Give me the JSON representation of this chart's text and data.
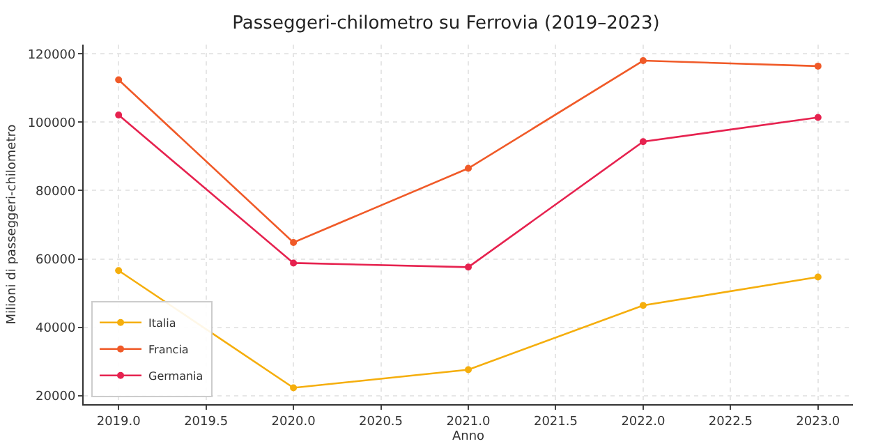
{
  "chart_data": {
    "type": "line",
    "title": "Passeggeri-chilometro su Ferrovia (2019–2023)",
    "xlabel": "Anno",
    "ylabel": "Milioni di passeggeri-chilometro",
    "x": [
      2019,
      2020,
      2021,
      2022,
      2023
    ],
    "series": [
      {
        "name": "Italia",
        "color": "#f5ae0c",
        "values": [
          56600,
          22300,
          27600,
          46400,
          54700
        ]
      },
      {
        "name": "Francia",
        "color": "#f05a28",
        "values": [
          112400,
          64800,
          86500,
          118000,
          116400
        ]
      },
      {
        "name": "Germania",
        "color": "#e6224f",
        "values": [
          102100,
          58800,
          57600,
          94300,
          101400
        ]
      }
    ],
    "xlim": [
      2018.8,
      2023.2
    ],
    "xticks": [
      {
        "value": 2019,
        "label": "2019.0"
      },
      {
        "value": 2019.5,
        "label": "2019.5"
      },
      {
        "value": 2020,
        "label": "2020.0"
      },
      {
        "value": 2020.5,
        "label": "2020.5"
      },
      {
        "value": 2021,
        "label": "2021.0"
      },
      {
        "value": 2021.5,
        "label": "2021.5"
      },
      {
        "value": 2022,
        "label": "2022.0"
      },
      {
        "value": 2022.5,
        "label": "2022.5"
      },
      {
        "value": 2023,
        "label": "2023.0"
      }
    ],
    "ylim": [
      17500,
      122700
    ],
    "yticks": [
      20000,
      40000,
      60000,
      80000,
      100000,
      120000
    ],
    "grid": true,
    "legend": "bottom left",
    "marker": "circle",
    "line_style": "solid"
  }
}
